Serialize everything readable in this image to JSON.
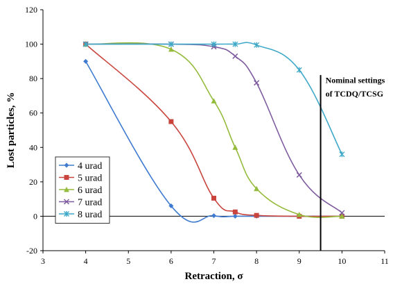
{
  "chart_data": {
    "type": "line",
    "title": "",
    "xlabel": "Retraction, σ",
    "ylabel": "Lost particles, %",
    "xlim": [
      3,
      11
    ],
    "ylim": [
      -20,
      120
    ],
    "xticks": [
      3,
      4,
      5,
      6,
      7,
      8,
      9,
      10,
      11
    ],
    "yticks": [
      -20,
      0,
      20,
      40,
      60,
      80,
      100,
      120
    ],
    "grid": false,
    "legend_position": "lower-left",
    "series": [
      {
        "name": "4 urad",
        "color": "#3d7ad0",
        "marker": "diamond",
        "points": [
          [
            4,
            90
          ],
          [
            6,
            6
          ],
          [
            7,
            0.3
          ],
          [
            7.5,
            0
          ],
          [
            8,
            0
          ],
          [
            9,
            0
          ],
          [
            10,
            0
          ]
        ]
      },
      {
        "name": "5 urad",
        "color": "#c8443d",
        "marker": "square",
        "points": [
          [
            4,
            100
          ],
          [
            6,
            55
          ],
          [
            7,
            10.5
          ],
          [
            7.5,
            2.5
          ],
          [
            8,
            0.5
          ],
          [
            9,
            0
          ],
          [
            10,
            0
          ]
        ]
      },
      {
        "name": "6 urad",
        "color": "#95bb3c",
        "marker": "triangle",
        "points": [
          [
            4,
            100
          ],
          [
            6,
            97
          ],
          [
            7,
            67
          ],
          [
            7.5,
            40
          ],
          [
            8,
            16
          ],
          [
            9,
            1
          ],
          [
            10,
            0
          ]
        ]
      },
      {
        "name": "7 urad",
        "color": "#7d5b9e",
        "marker": "x",
        "points": [
          [
            4,
            100
          ],
          [
            6,
            100
          ],
          [
            7,
            98.5
          ],
          [
            7.5,
            93
          ],
          [
            8,
            77.5
          ],
          [
            9,
            24
          ],
          [
            10,
            2
          ]
        ]
      },
      {
        "name": "8 urad",
        "color": "#3fa9c8",
        "marker": "star",
        "points": [
          [
            4,
            100
          ],
          [
            6,
            100
          ],
          [
            7,
            100
          ],
          [
            7.5,
            100
          ],
          [
            8,
            99.5
          ],
          [
            9,
            85
          ],
          [
            10,
            36
          ]
        ]
      }
    ],
    "vertical_line": {
      "x": 9.5,
      "label_line1": "Nominal settings",
      "label_line2": "of TCDQ/TCSG"
    }
  }
}
